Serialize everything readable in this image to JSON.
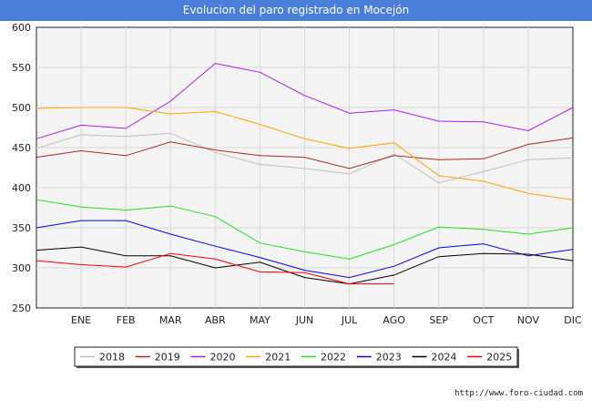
{
  "title": "Evolucion del paro registrado en Mocejón",
  "footer": "http://www.foro-ciudad.com",
  "colors": {
    "title_bg": "#4a7fd9",
    "plot_bg": "#f4f4f4",
    "grid": "#d8d8d8",
    "axis": "#222222"
  },
  "chart_data": {
    "type": "line",
    "title": "Evolucion del paro registrado en Mocejón",
    "xlabel": "",
    "ylabel": "",
    "categories": [
      "",
      "ENE",
      "FEB",
      "MAR",
      "ABR",
      "MAY",
      "JUN",
      "JUL",
      "AGO",
      "SEP",
      "OCT",
      "NOV",
      "DIC"
    ],
    "ylim": [
      250,
      600
    ],
    "yticks": [
      250,
      300,
      350,
      400,
      450,
      500,
      550,
      600
    ],
    "grid": true,
    "legend_position": "bottom",
    "series": [
      {
        "name": "2018",
        "color": "#c0c0c0",
        "values": [
          449,
          466,
          464,
          468,
          444,
          429,
          424,
          417,
          442,
          406,
          420,
          435,
          437
        ]
      },
      {
        "name": "2019",
        "color": "#a52a2a",
        "values": [
          438,
          446,
          440,
          457,
          447,
          440,
          438,
          424,
          440,
          435,
          436,
          454,
          462
        ]
      },
      {
        "name": "2020",
        "color": "#a020f0",
        "values": [
          461,
          478,
          474,
          508,
          555,
          544,
          515,
          493,
          497,
          483,
          482,
          471,
          500
        ]
      },
      {
        "name": "2021",
        "color": "#ffa500",
        "values": [
          499,
          500,
          500,
          492,
          495,
          479,
          461,
          449,
          456,
          415,
          408,
          393,
          385
        ]
      },
      {
        "name": "2022",
        "color": "#22dd22",
        "values": [
          385,
          376,
          372,
          377,
          364,
          331,
          320,
          311,
          329,
          351,
          348,
          342,
          350
        ]
      },
      {
        "name": "2023",
        "color": "#0000ee",
        "values": [
          350,
          359,
          359,
          342,
          327,
          313,
          297,
          288,
          302,
          325,
          330,
          315,
          323
        ]
      },
      {
        "name": "2024",
        "color": "#000000",
        "values": [
          322,
          326,
          315,
          315,
          300,
          307,
          288,
          280,
          291,
          314,
          318,
          317,
          309
        ]
      },
      {
        "name": "2025",
        "color": "#ee0000",
        "values": [
          309,
          304,
          301,
          318,
          311,
          295,
          294,
          280,
          280,
          null,
          null,
          null,
          null
        ]
      }
    ]
  }
}
